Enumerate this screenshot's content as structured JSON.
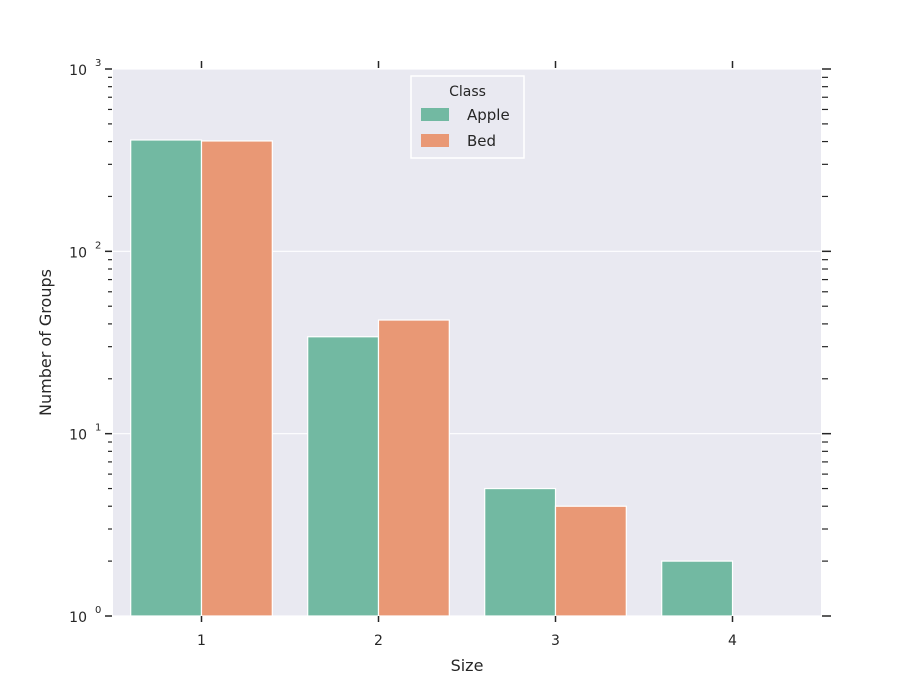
{
  "chart_data": {
    "type": "bar",
    "title": "",
    "xlabel": "Size",
    "ylabel": "Number of Groups",
    "categories": [
      "1",
      "2",
      "3",
      "4"
    ],
    "y_scale": "log",
    "ylim": [
      1,
      1000
    ],
    "y_ticks": [
      {
        "value": 1,
        "base": "10",
        "exp": "0"
      },
      {
        "value": 10,
        "base": "10",
        "exp": "1"
      },
      {
        "value": 100,
        "base": "10",
        "exp": "2"
      },
      {
        "value": 1000,
        "base": "10",
        "exp": "3"
      }
    ],
    "series": [
      {
        "name": "Apple",
        "color": "#72b9a2",
        "values": [
          408,
          34,
          5,
          2
        ]
      },
      {
        "name": "Bed",
        "color": "#e99875",
        "values": [
          403,
          42,
          4,
          null
        ]
      }
    ],
    "legend": {
      "title": "Class",
      "placement": "top-center"
    },
    "grid": true,
    "plot_background": "#e9e9f1",
    "grid_color": "#ffffff"
  }
}
